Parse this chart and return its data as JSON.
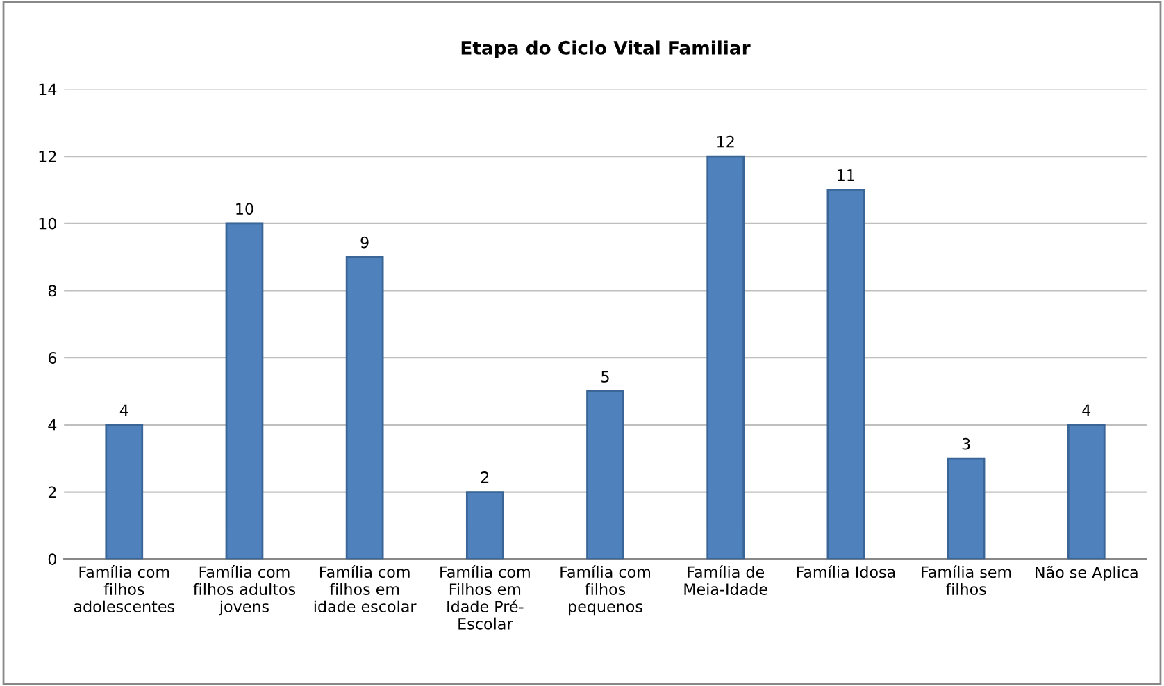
{
  "chart_data": {
    "type": "bar",
    "title": "Etapa do Ciclo Vital Familiar",
    "categories": [
      "Família com\nfilhos\nadolescentes",
      "Família com\nfilhos adultos\njovens",
      "Família com\nfilhos em\nidade escolar",
      "Família com\nFilhos em\nIdade Pré-\nEscolar",
      "Família com\nfilhos\npequenos",
      "Família de\nMeia-Idade",
      "Família Idosa",
      "Família sem\nfilhos",
      "Não se Aplica"
    ],
    "values": [
      4,
      10,
      9,
      2,
      5,
      12,
      11,
      3,
      4
    ],
    "color": "#4f81bd",
    "ylim": [
      0,
      14
    ],
    "yticks": [
      0,
      2,
      4,
      6,
      8,
      10,
      12,
      14
    ],
    "grid": "y",
    "data_labels": true,
    "legend": false
  }
}
